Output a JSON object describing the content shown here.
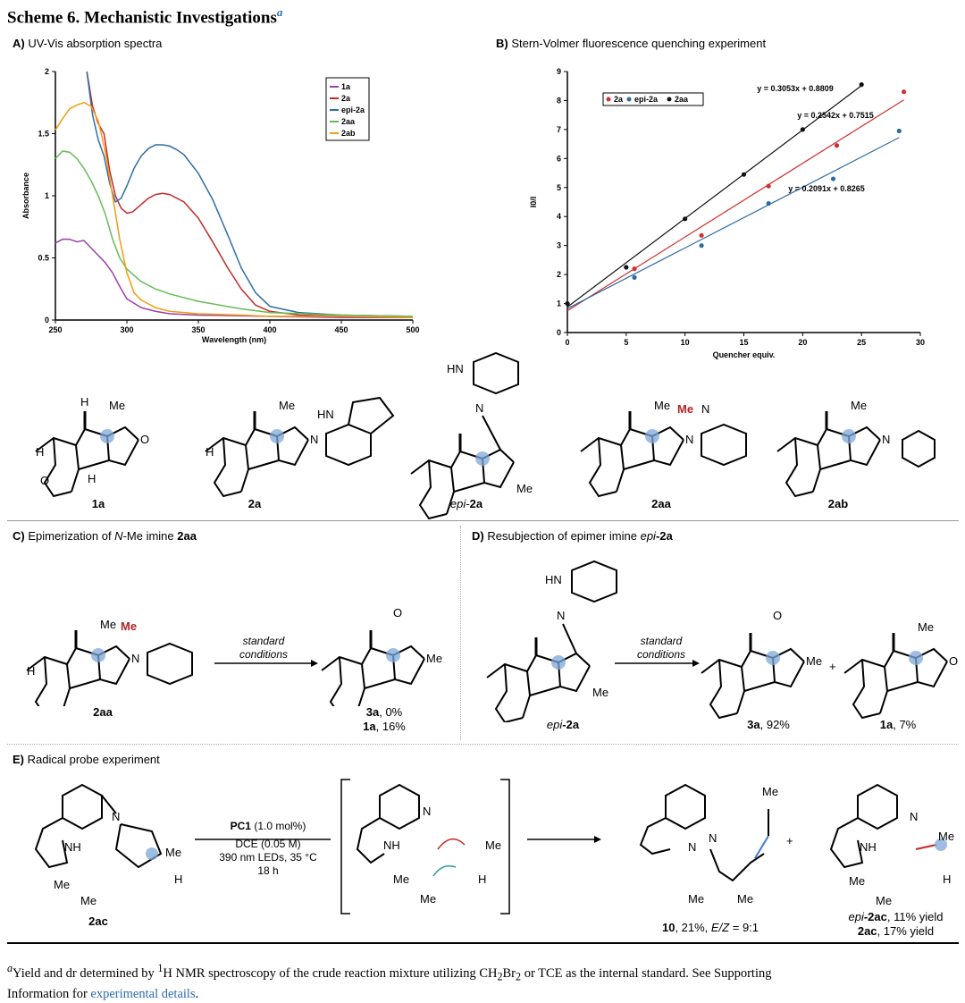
{
  "scheme": {
    "label": "Scheme 6.",
    "title": "Mechanistic Investigations",
    "sup": "a"
  },
  "panelA": {
    "letter": "A)",
    "title": "UV-Vis absorption spectra",
    "chart_data": {
      "type": "line",
      "title": "UV-Vis absorption spectra",
      "xlabel": "Wavelength (nm)",
      "ylabel": "Absorbance",
      "xlim": [
        250,
        500
      ],
      "ylim": [
        0,
        2
      ],
      "xticks": [
        "250",
        "300",
        "350",
        "400",
        "450",
        "500"
      ],
      "yticks": [
        "0",
        "0.5",
        "1",
        "1.5",
        "2"
      ],
      "legend_position": "top-right",
      "series": [
        {
          "name": "1a",
          "color": "#9b3fa8",
          "x": [
            250,
            255,
            260,
            265,
            270,
            275,
            280,
            285,
            290,
            295,
            300,
            310,
            320,
            330,
            350,
            400,
            450,
            500
          ],
          "y": [
            0.62,
            0.65,
            0.65,
            0.63,
            0.64,
            0.58,
            0.52,
            0.46,
            0.38,
            0.27,
            0.17,
            0.1,
            0.07,
            0.05,
            0.04,
            0.03,
            0.02,
            0.02
          ]
        },
        {
          "name": "2a",
          "color": "#c62828",
          "x": [
            272,
            276,
            280,
            284,
            288,
            292,
            296,
            300,
            304,
            310,
            315,
            320,
            325,
            330,
            340,
            350,
            360,
            370,
            380,
            390,
            400,
            420,
            450,
            500
          ],
          "y": [
            2.0,
            1.72,
            1.58,
            1.5,
            1.2,
            1.0,
            0.9,
            0.86,
            0.87,
            0.93,
            0.98,
            1.01,
            1.02,
            1.01,
            0.95,
            0.82,
            0.63,
            0.43,
            0.25,
            0.12,
            0.07,
            0.04,
            0.03,
            0.02
          ]
        },
        {
          "name": "epi-2a",
          "color": "#2e6da4",
          "x": [
            272,
            276,
            280,
            284,
            288,
            292,
            296,
            300,
            305,
            310,
            315,
            320,
            325,
            330,
            335,
            340,
            350,
            360,
            370,
            380,
            390,
            400,
            420,
            450,
            500
          ],
          "y": [
            2.0,
            1.65,
            1.45,
            1.32,
            1.1,
            0.95,
            0.98,
            1.08,
            1.22,
            1.32,
            1.38,
            1.41,
            1.41,
            1.4,
            1.37,
            1.33,
            1.18,
            0.97,
            0.7,
            0.42,
            0.22,
            0.11,
            0.06,
            0.04,
            0.03
          ]
        },
        {
          "name": "2aa",
          "color": "#66bb55",
          "x": [
            250,
            255,
            260,
            265,
            270,
            275,
            280,
            285,
            290,
            295,
            300,
            310,
            320,
            330,
            350,
            380,
            400,
            450,
            500
          ],
          "y": [
            1.3,
            1.36,
            1.35,
            1.3,
            1.22,
            1.12,
            1.0,
            0.85,
            0.65,
            0.5,
            0.41,
            0.31,
            0.25,
            0.21,
            0.15,
            0.09,
            0.06,
            0.04,
            0.03
          ]
        },
        {
          "name": "2ab",
          "color": "#f39c12",
          "x": [
            250,
            255,
            260,
            265,
            270,
            275,
            280,
            285,
            290,
            295,
            300,
            305,
            310,
            320,
            330,
            350,
            380,
            400,
            450,
            500
          ],
          "y": [
            1.53,
            1.62,
            1.7,
            1.73,
            1.75,
            1.72,
            1.6,
            1.35,
            1.0,
            0.65,
            0.38,
            0.22,
            0.16,
            0.1,
            0.07,
            0.05,
            0.04,
            0.03,
            0.03,
            0.02
          ]
        }
      ]
    }
  },
  "panelB": {
    "letter": "B)",
    "title": "Stern-Volmer fluorescence quenching experiment",
    "chart_data": {
      "type": "scatter",
      "title": "Stern-Volmer fluorescence quenching experiment",
      "xlabel": "Quencher equiv.",
      "ylabel": "I0/I",
      "xlim": [
        0,
        30
      ],
      "ylim": [
        0,
        9
      ],
      "xticks": [
        "0",
        "5",
        "10",
        "15",
        "20",
        "25",
        "30"
      ],
      "yticks": [
        "0",
        "1",
        "2",
        "3",
        "4",
        "5",
        "6",
        "7",
        "8",
        "9"
      ],
      "legend_position": "top-left",
      "series": [
        {
          "name": "2a",
          "color": "#d32f2f",
          "x": [
            0,
            5.7,
            11.4,
            17.1,
            22.9,
            28.6
          ],
          "y": [
            1.0,
            2.2,
            3.35,
            5.05,
            6.45,
            8.3
          ],
          "fit": {
            "slope": 0.2542,
            "intercept": 0.7515,
            "x_end": 28.6,
            "label": "y = 0.2542x + 0.7515"
          }
        },
        {
          "name": "epi-2a",
          "color": "#2e6da4",
          "x": [
            0,
            5.7,
            11.4,
            17.1,
            22.6,
            28.2
          ],
          "y": [
            1.0,
            1.9,
            3.0,
            4.45,
            5.3,
            6.95
          ],
          "fit": {
            "slope": 0.2091,
            "intercept": 0.8265,
            "x_end": 28.2,
            "label": "y = 0.2091x + 0.8265"
          }
        },
        {
          "name": "2aa",
          "color": "#111111",
          "x": [
            0,
            5,
            10,
            15,
            20,
            25
          ],
          "y": [
            1.0,
            2.25,
            3.92,
            5.45,
            7.0,
            8.55
          ],
          "fit": {
            "slope": 0.3053,
            "intercept": 0.8809,
            "x_end": 25,
            "label": "y = 0.3053x + 0.8809"
          }
        }
      ]
    }
  },
  "compounds": {
    "c1a": "1a",
    "c2a": "2a",
    "cepi_pre": "epi-",
    "cepi_num": "2a",
    "c2aa": "2aa",
    "c2ab": "2ab"
  },
  "atoms": {
    "me": "Me",
    "h": "H",
    "o": "O",
    "n": "N",
    "hn": "HN",
    "nh": "NH"
  },
  "panelC": {
    "letter": "C)",
    "title_pre": "Epimerization of ",
    "title_n": "N",
    "title_mid": "-Me imine ",
    "title_cmp": "2aa",
    "arrow_line1": "standard",
    "arrow_line2": "conditions",
    "sm": "2aa",
    "p1_cmp": "3a",
    "p1_val": ", 0%",
    "p2_cmp": "1a",
    "p2_val": ", 16%"
  },
  "panelD": {
    "letter": "D)",
    "title_pre": "Resubjection of epimer imine ",
    "title_epi": "epi",
    "title_cmp": "-2a",
    "arrow_line1": "standard",
    "arrow_line2": "conditions",
    "sm_epi": "epi",
    "sm_cmp": "-2a",
    "p1_cmp": "3a",
    "p1_val": ", 92%",
    "plus": "+",
    "p2_cmp": "1a",
    "p2_val": ", 7%"
  },
  "panelE": {
    "letter": "E)",
    "title": "Radical probe experiment",
    "sm": "2ac",
    "pc_name": "PC1",
    "pc_amt": " (1.0 mol%)",
    "cond2": "DCE (0.05 M)",
    "cond3": "390 nm LEDs, 35 °C",
    "cond4": "18 h",
    "p1_cmp": "10",
    "p1_val": ", 21%, ",
    "p1_ez": "E/Z",
    "p1_ratio": " = 9:1",
    "plus": "+",
    "p2a_epi": "epi",
    "p2a_cmp": "-2ac",
    "p2a_val": ", 11% yield",
    "p2b_cmp": "2ac",
    "p2b_val": ", 17% yield"
  },
  "footnote": {
    "mark": "a",
    "text1": "Yield and dr determined by ",
    "sup1": "1",
    "text2": "H NMR spectroscopy of the crude reaction mixture utilizing CH",
    "sub1": "2",
    "text3": "Br",
    "sub2": "2",
    "text4": " or TCE as the internal standard. See Supporting",
    "text5": "Information for ",
    "link": "experimental details",
    "text6": "."
  },
  "colors": {
    "highlight": "#7ea7d8",
    "me_red": "#b22222",
    "link": "#2b6cb0"
  }
}
